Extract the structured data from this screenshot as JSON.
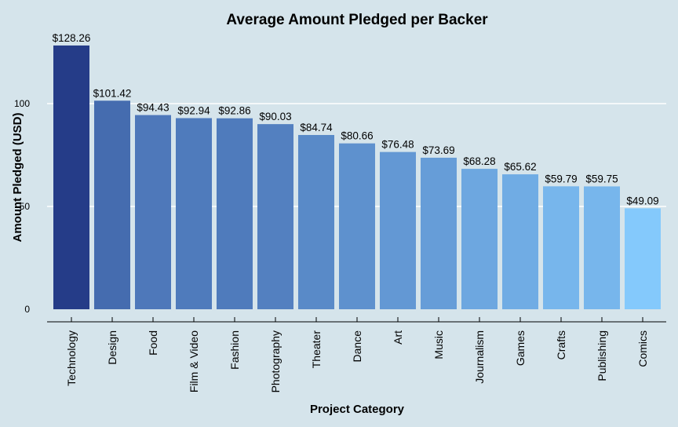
{
  "chart_data": {
    "type": "bar",
    "title": "Average Amount Pledged per Backer",
    "xlabel": "Project Category",
    "ylabel": "Amount Pledged (USD)",
    "categories": [
      "Technology",
      "Design",
      "Food",
      "Film & Video",
      "Fashion",
      "Photography",
      "Theater",
      "Dance",
      "Art",
      "Music",
      "Journalism",
      "Games",
      "Crafts",
      "Publishing",
      "Comics"
    ],
    "values": [
      128.26,
      101.42,
      94.43,
      92.94,
      92.86,
      90.03,
      84.74,
      80.66,
      76.48,
      73.69,
      68.28,
      65.62,
      59.79,
      59.75,
      49.09
    ],
    "data_labels": [
      "$128.26",
      "$101.42",
      "$94.43",
      "$92.94",
      "$92.86",
      "$90.03",
      "$84.74",
      "$80.66",
      "$76.48",
      "$73.69",
      "$68.28",
      "$65.62",
      "$59.79",
      "$59.75",
      "$49.09"
    ],
    "yticks": [
      0,
      50,
      100
    ],
    "ytick_labels": [
      "0",
      "50",
      "100"
    ],
    "ylim": [
      0,
      135
    ],
    "grid": "horizontal",
    "legend": "none",
    "colors": {
      "background": "#d5e4eb",
      "gradient_high": "#253c88",
      "gradient_low": "#84c9fc",
      "grid": "#ffffff",
      "axis": "#000000"
    }
  }
}
